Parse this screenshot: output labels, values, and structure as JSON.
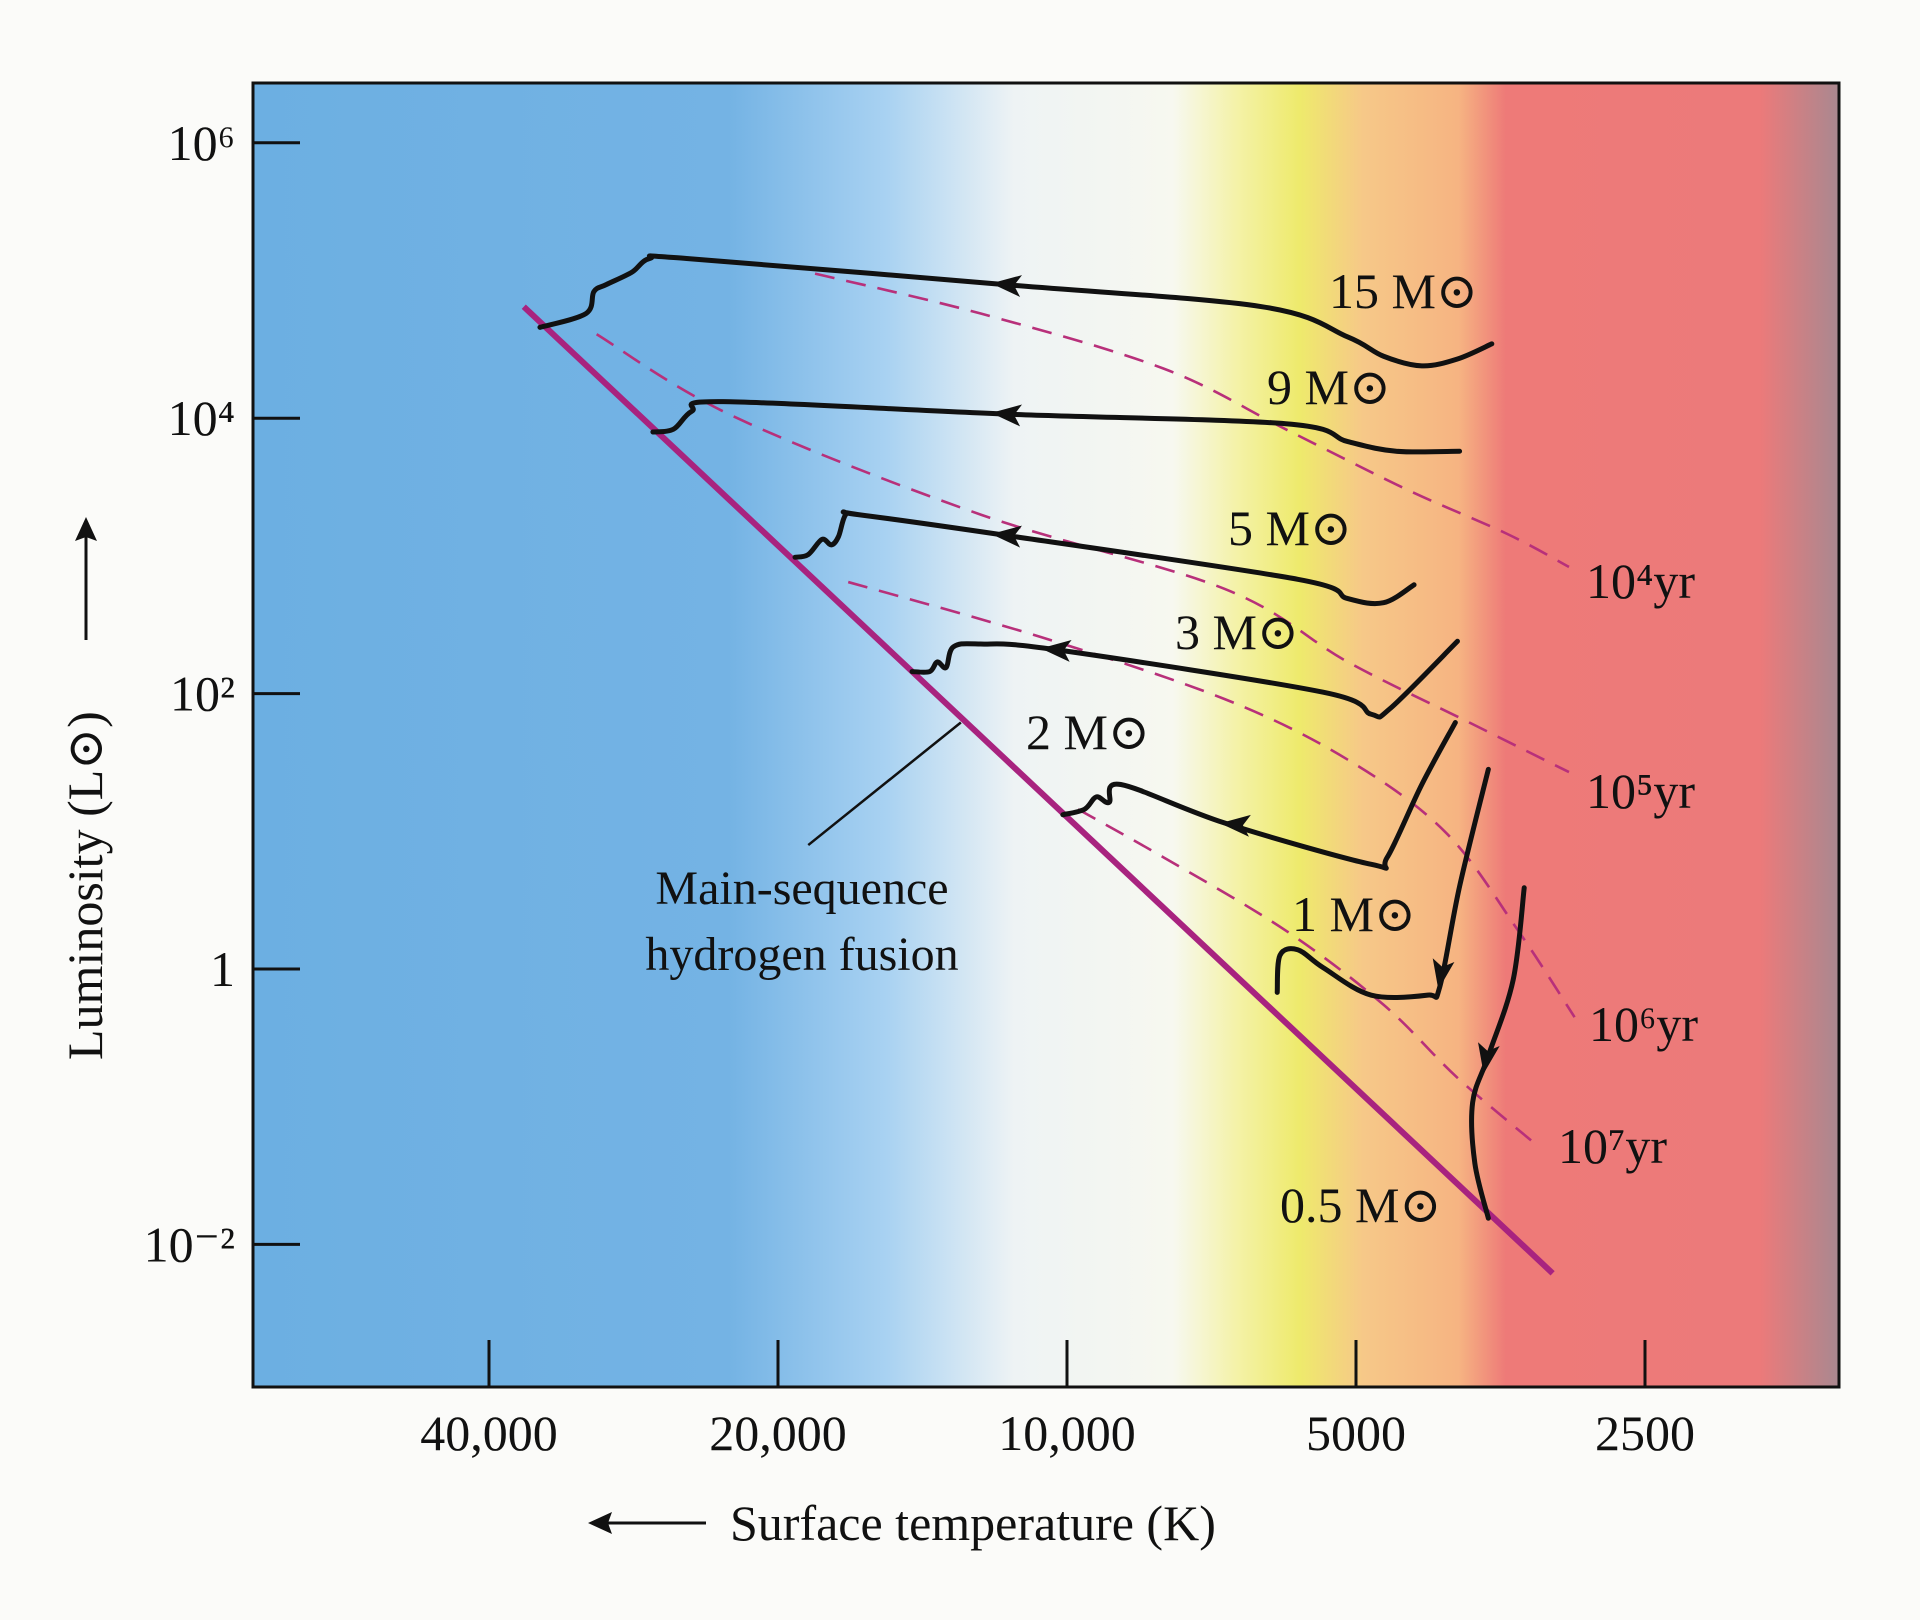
{
  "chart_data": {
    "type": "line",
    "title": "",
    "xlabel": "Surface temperature (K)",
    "ylabel": "Luminosity (L⊙)",
    "x_scale": "log, decreasing to the right",
    "y_scale": "log",
    "xlim": [
      68000,
      1700
    ],
    "ylim_log10": [
      -3.0,
      6.6
    ],
    "x_ticks": [
      {
        "value": 40000,
        "label": "40,000"
      },
      {
        "value": 20000,
        "label": "20,000"
      },
      {
        "value": 10000,
        "label": "10,000"
      },
      {
        "value": 5000,
        "label": "5000"
      },
      {
        "value": 2500,
        "label": "2500"
      }
    ],
    "y_ticks": [
      {
        "log10_L": 6,
        "label": "10⁶"
      },
      {
        "log10_L": 4,
        "label": "10⁴"
      },
      {
        "log10_L": 2,
        "label": "10²"
      },
      {
        "log10_L": 0,
        "label": "1"
      },
      {
        "log10_L": -2,
        "label": "10⁻²"
      }
    ],
    "background_colors": {
      "blue": "#6cafe2",
      "light_blue": "#a9d2f2",
      "white": "#f7f8f4",
      "yellow": "#eeea6c",
      "orange": "#f6ba82",
      "red": "#ee7a78",
      "dark_edge": "#a98890"
    },
    "main_sequence": {
      "label_line1": "Main-sequence",
      "label_line2": "hydrogen fusion",
      "points": [
        [
          36800,
          4.81
        ],
        [
          3120,
          -2.21
        ]
      ],
      "pointer": [
        [
          12900,
          1.79
        ],
        [
          18600,
          0.9
        ]
      ],
      "color": "#a8237f"
    },
    "tracks": [
      {
        "label": "15 M⊙",
        "points": [
          [
            35400,
            4.66
          ],
          [
            31700,
            4.76
          ],
          [
            31100,
            4.92
          ],
          [
            30200,
            4.97
          ],
          [
            28400,
            5.06
          ],
          [
            27200,
            5.16
          ],
          [
            24900,
            5.16
          ],
          [
            11600,
            4.97
          ],
          [
            6270,
            4.81
          ],
          [
            5100,
            4.59
          ],
          [
            4680,
            4.45
          ],
          [
            4270,
            4.38
          ],
          [
            3920,
            4.43
          ],
          [
            3610,
            4.54
          ]
        ],
        "arrow": {
          "T": 11600,
          "log10_L": 4.97,
          "direction": "left"
        }
      },
      {
        "label": "9 M⊙",
        "points": [
          [
            27000,
            3.9
          ],
          [
            25700,
            3.92
          ],
          [
            24600,
            4.05
          ],
          [
            22800,
            4.12
          ],
          [
            11600,
            4.03
          ],
          [
            5920,
            3.96
          ],
          [
            5100,
            3.83
          ],
          [
            4540,
            3.76
          ],
          [
            3900,
            3.76
          ]
        ],
        "arrow": {
          "T": 11600,
          "log10_L": 4.03,
          "direction": "left"
        }
      },
      {
        "label": "5 M⊙",
        "points": [
          [
            19200,
            2.99
          ],
          [
            18600,
            3.01
          ],
          [
            18000,
            3.12
          ],
          [
            17600,
            3.08
          ],
          [
            17300,
            3.14
          ],
          [
            17000,
            3.3
          ],
          [
            16500,
            3.3
          ],
          [
            11600,
            3.15
          ],
          [
            5750,
            2.83
          ],
          [
            5100,
            2.69
          ],
          [
            4680,
            2.66
          ],
          [
            4350,
            2.79
          ]
        ],
        "arrow": {
          "T": 11600,
          "log10_L": 3.15,
          "direction": "left"
        }
      },
      {
        "label": "3 M⊙",
        "points": [
          [
            14500,
            2.16
          ],
          [
            13900,
            2.16
          ],
          [
            13650,
            2.23
          ],
          [
            13360,
            2.19
          ],
          [
            13130,
            2.34
          ],
          [
            12300,
            2.36
          ],
          [
            10300,
            2.32
          ],
          [
            5410,
            2.01
          ],
          [
            4820,
            1.85
          ],
          [
            4610,
            1.89
          ],
          [
            3920,
            2.38
          ]
        ],
        "arrow": {
          "T": 10300,
          "log10_L": 2.32,
          "direction": "left"
        }
      },
      {
        "label": "2 M⊙",
        "points": [
          [
            10100,
            1.12
          ],
          [
            9590,
            1.16
          ],
          [
            9320,
            1.25
          ],
          [
            9040,
            1.21
          ],
          [
            8790,
            1.34
          ],
          [
            6850,
            1.06
          ],
          [
            4820,
            0.76
          ],
          [
            4640,
            0.81
          ],
          [
            4270,
            1.34
          ],
          [
            3940,
            1.79
          ]
        ],
        "arrow": {
          "T": 6700,
          "log10_L": 1.05,
          "direction": "left"
        }
      },
      {
        "label": "1 M⊙",
        "points": [
          [
            3640,
            1.45
          ],
          [
            3900,
            0.6
          ],
          [
            4090,
            -0.13
          ],
          [
            4210,
            -0.19
          ],
          [
            4820,
            -0.19
          ],
          [
            5410,
            0.01
          ],
          [
            5750,
            0.14
          ],
          [
            6000,
            0.1
          ],
          [
            6040,
            -0.17
          ]
        ],
        "arrow": {
          "T": 4080,
          "log10_L": -0.05,
          "direction": "down"
        }
      },
      {
        "label": "0.5 M⊙",
        "points": [
          [
            3340,
            0.59
          ],
          [
            3430,
            -0.08
          ],
          [
            3640,
            -0.63
          ],
          [
            3780,
            -0.97
          ],
          [
            3760,
            -1.41
          ],
          [
            3640,
            -1.81
          ]
        ],
        "arrow": {
          "T": 3660,
          "log10_L": -0.66,
          "direction": "down"
        }
      }
    ],
    "isochrones": [
      {
        "label": "10⁴yr",
        "points": [
          [
            18300,
            5.05
          ],
          [
            12300,
            4.76
          ],
          [
            7930,
            4.36
          ],
          [
            5920,
            3.92
          ],
          [
            4420,
            3.48
          ],
          [
            3480,
            3.16
          ],
          [
            3000,
            2.92
          ]
        ]
      },
      {
        "label": "10⁵yr",
        "points": [
          [
            30900,
            4.61
          ],
          [
            22200,
            4.01
          ],
          [
            12300,
            3.3
          ],
          [
            6850,
            2.76
          ],
          [
            5100,
            2.23
          ],
          [
            3810,
            1.79
          ],
          [
            3000,
            1.43
          ]
        ]
      },
      {
        "label": "10⁶yr",
        "points": [
          [
            16900,
            2.81
          ],
          [
            10640,
            2.41
          ],
          [
            6850,
            1.96
          ],
          [
            5100,
            1.52
          ],
          [
            4030,
            0.99
          ],
          [
            3390,
            0.28
          ],
          [
            2960,
            -0.35
          ]
        ]
      },
      {
        "label": "10⁷yr",
        "points": [
          [
            9740,
            1.16
          ],
          [
            7930,
            0.81
          ],
          [
            5920,
            0.28
          ],
          [
            4680,
            -0.26
          ],
          [
            3920,
            -0.79
          ],
          [
            3240,
            -1.28
          ]
        ]
      }
    ],
    "track_color": "#111111",
    "isochrone_color": "#b8307a",
    "grid": false,
    "legend": "none"
  }
}
